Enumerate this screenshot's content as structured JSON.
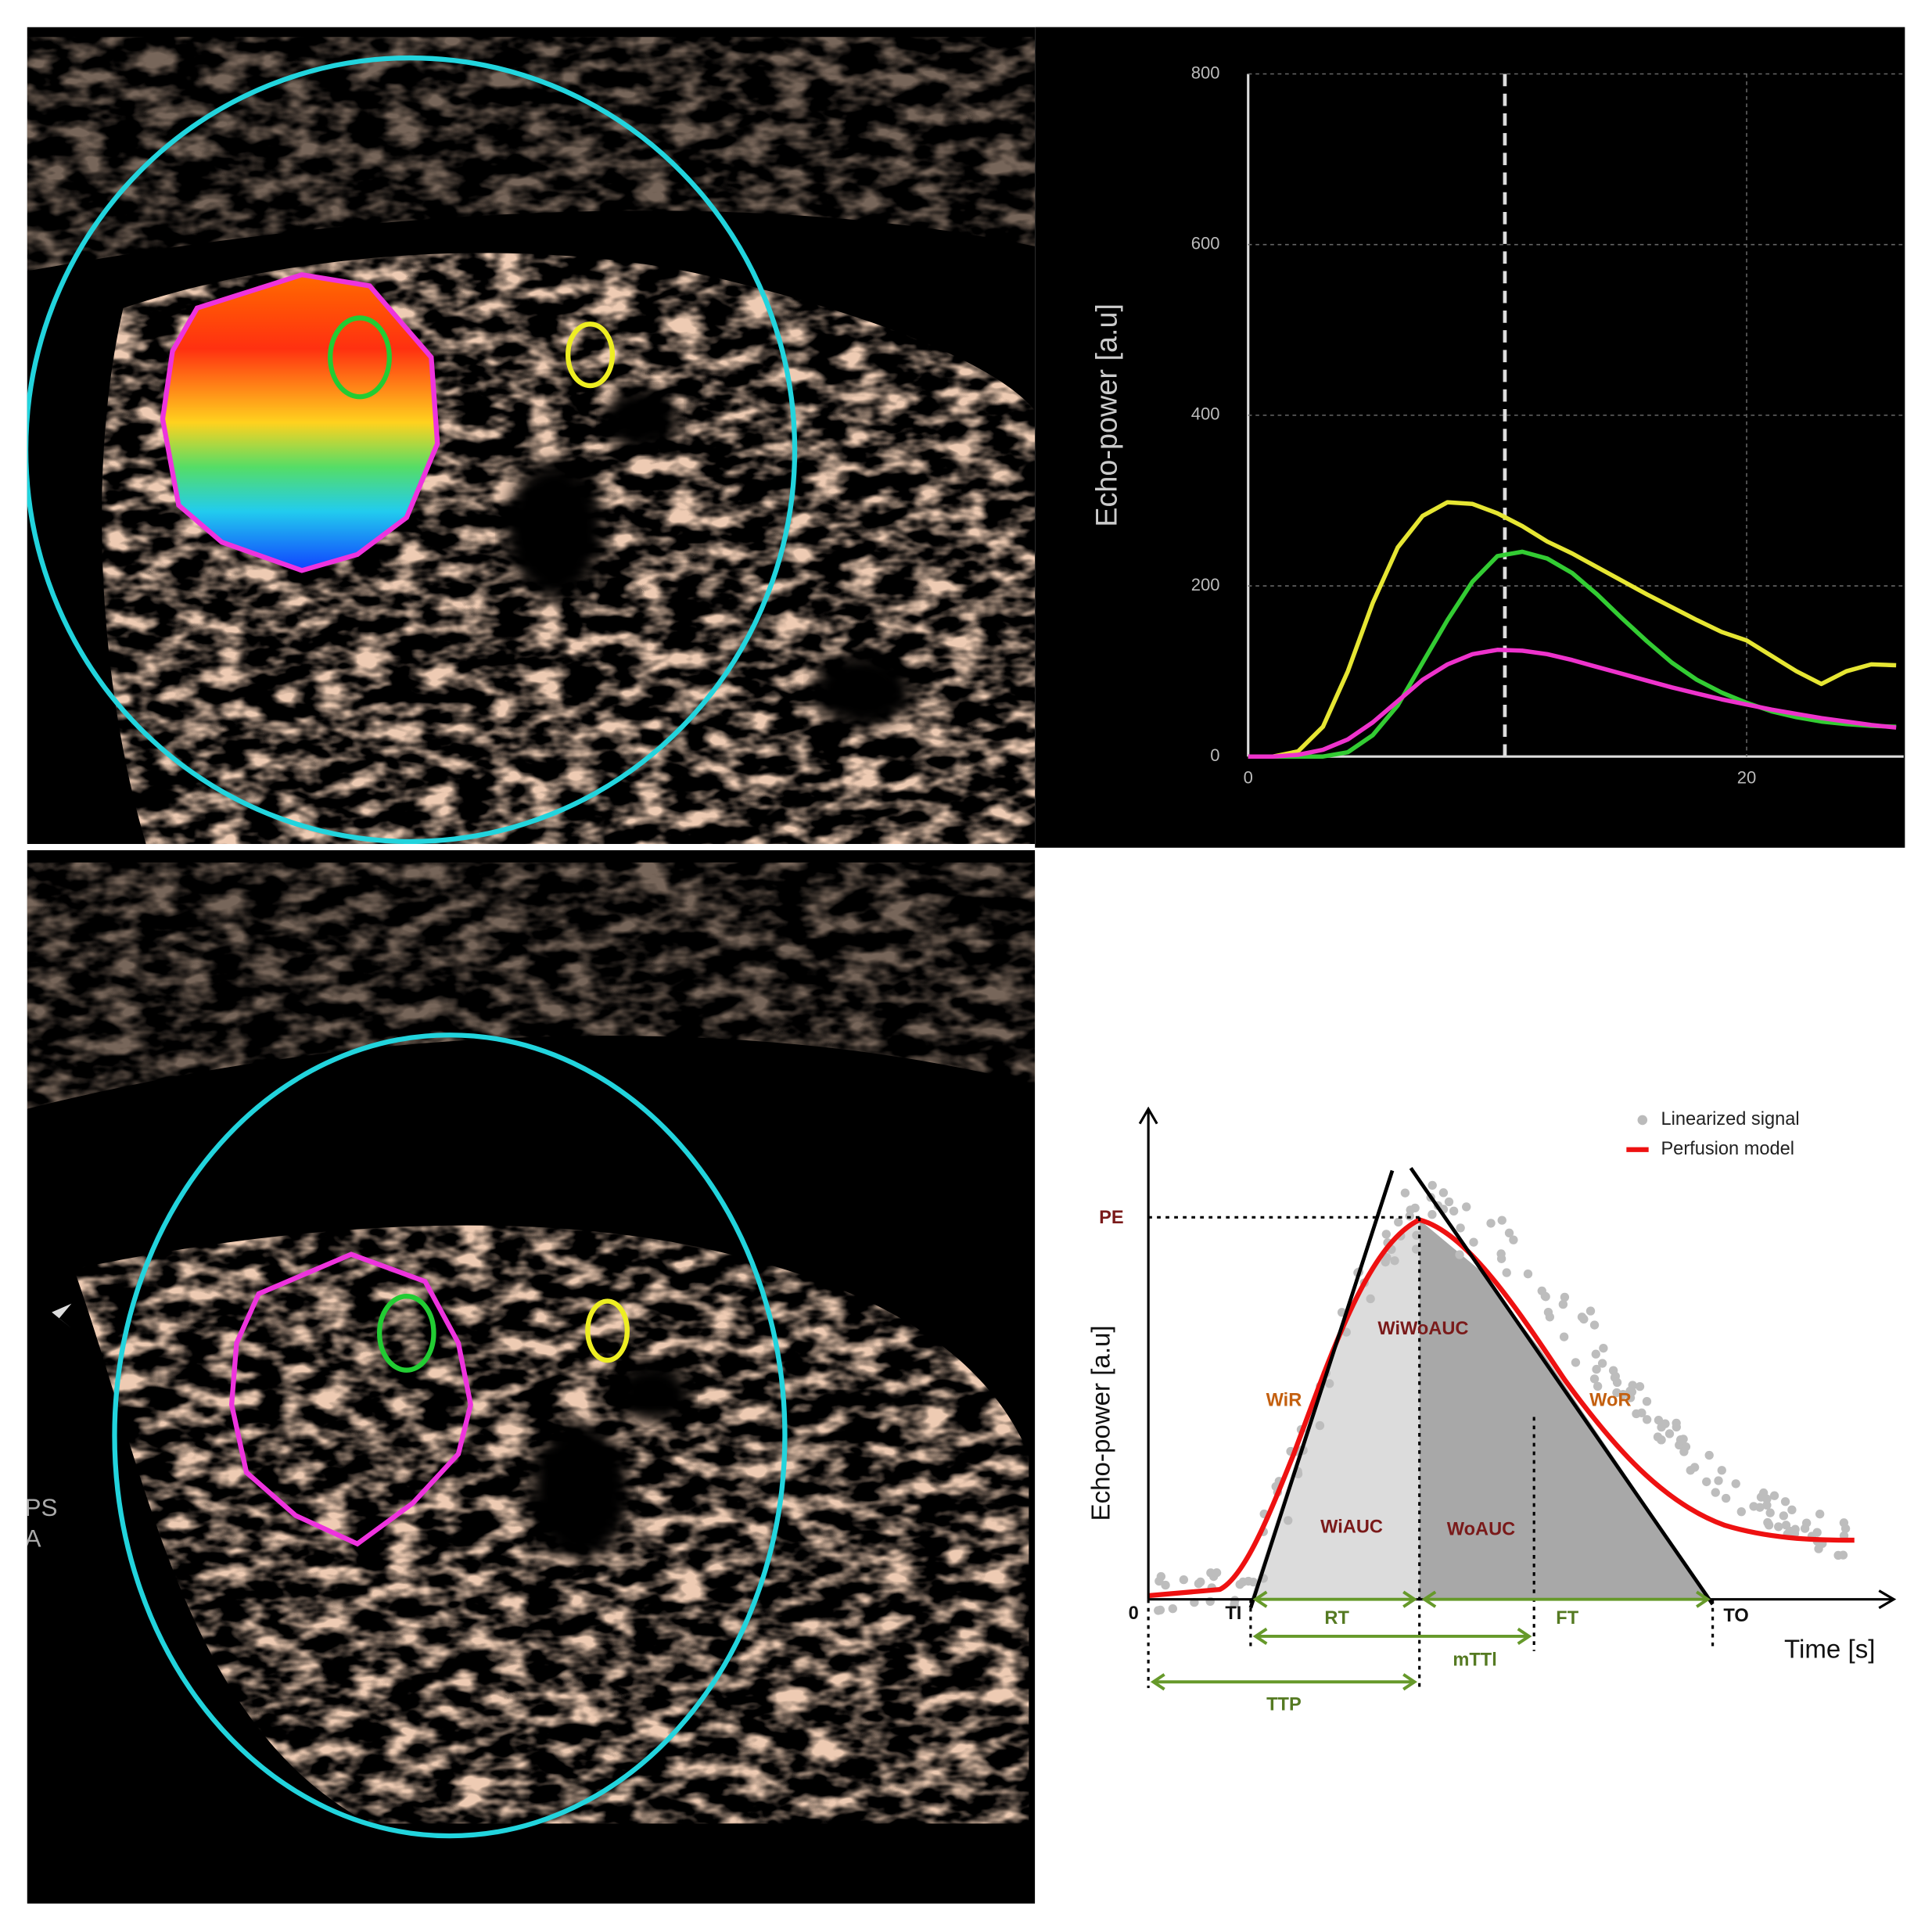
{
  "chart_data": {
    "type": "line",
    "y_label": "Echo-power [a.u]",
    "x": [
      0,
      1,
      2,
      3,
      4,
      5,
      6,
      7,
      8,
      9,
      10,
      11,
      12,
      13,
      14,
      15,
      16,
      17,
      18,
      19,
      20,
      21,
      22,
      23,
      24,
      25,
      26
    ],
    "series": [
      {
        "color": "#e6e633",
        "values": [
          0,
          0,
          6,
          35,
          100,
          180,
          245,
          282,
          298,
          296,
          285,
          270,
          252,
          238,
          222,
          206,
          190,
          175,
          160,
          146,
          136,
          118,
          100,
          85,
          100,
          108,
          107
        ]
      },
      {
        "color": "#33cc33",
        "values": [
          0,
          0,
          0,
          0,
          5,
          25,
          60,
          110,
          160,
          205,
          235,
          240,
          232,
          215,
          190,
          162,
          135,
          110,
          90,
          75,
          63,
          53,
          46,
          41,
          38,
          36,
          35
        ]
      },
      {
        "color": "#ee33cc",
        "values": [
          0,
          0,
          2,
          8,
          20,
          40,
          65,
          90,
          108,
          120,
          125,
          124,
          120,
          113,
          105,
          97,
          89,
          81,
          74,
          67,
          61,
          55,
          50,
          45,
          41,
          37,
          34
        ]
      }
    ],
    "xlim": [
      0,
      26.3
    ],
    "ylim": [
      0,
      800
    ],
    "xticks": [
      0,
      20
    ],
    "yticks": [
      0,
      200,
      400,
      600,
      800
    ],
    "grid": true,
    "marker_x": 10.3
  },
  "bottom_image": {
    "labels": [
      "PS",
      "A"
    ]
  },
  "diagram": {
    "legend": [
      "Linearized signal",
      "Perfusion model"
    ],
    "y_label": "Echo-power [a.u]",
    "x_label": "Time [s]",
    "points": [
      "0",
      "TI",
      "TO",
      "PE"
    ],
    "rates": [
      "WiR",
      "WoR"
    ],
    "areas": [
      "WiWoAUC",
      "WiAUC",
      "WoAUC"
    ],
    "intervals": [
      "RT",
      "FT",
      "mTTl",
      "TTP"
    ]
  }
}
